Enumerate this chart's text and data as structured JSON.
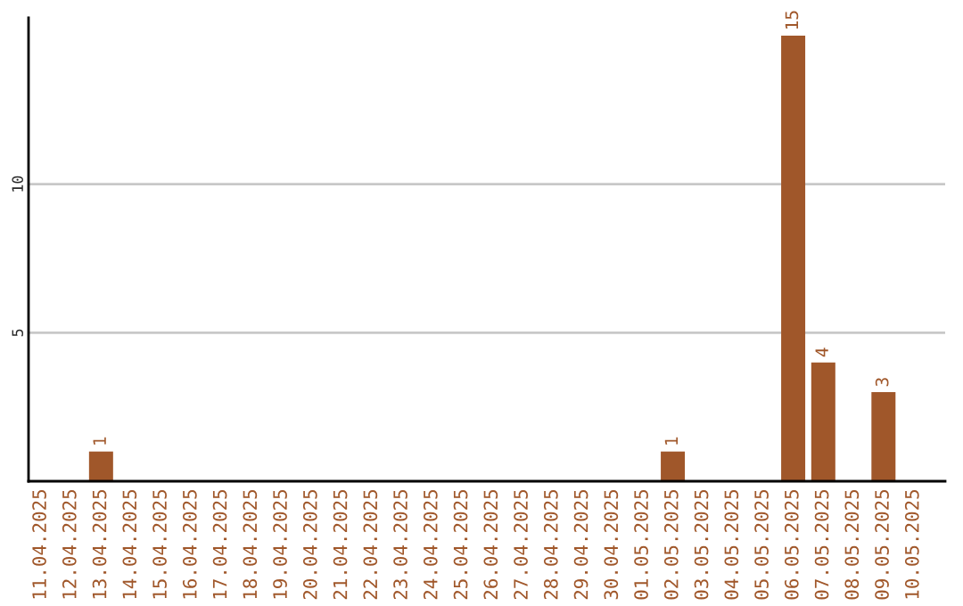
{
  "chart_data": {
    "type": "bar",
    "categories": [
      "11.04.2025",
      "12.04.2025",
      "13.04.2025",
      "14.04.2025",
      "15.04.2025",
      "16.04.2025",
      "17.04.2025",
      "18.04.2025",
      "19.04.2025",
      "20.04.2025",
      "21.04.2025",
      "22.04.2025",
      "23.04.2025",
      "24.04.2025",
      "25.04.2025",
      "26.04.2025",
      "27.04.2025",
      "28.04.2025",
      "29.04.2025",
      "30.04.2025",
      "01.05.2025",
      "02.05.2025",
      "03.05.2025",
      "04.05.2025",
      "05.05.2025",
      "06.05.2025",
      "07.05.2025",
      "08.05.2025",
      "09.05.2025",
      "10.05.2025"
    ],
    "values": [
      0,
      0,
      1,
      0,
      0,
      0,
      0,
      0,
      0,
      0,
      0,
      0,
      0,
      0,
      0,
      0,
      0,
      0,
      0,
      0,
      0,
      1,
      0,
      0,
      0,
      15,
      4,
      0,
      3,
      0
    ],
    "value_labels": [
      null,
      null,
      "1",
      null,
      null,
      null,
      null,
      null,
      null,
      null,
      null,
      null,
      null,
      null,
      null,
      null,
      null,
      null,
      null,
      null,
      null,
      "1",
      null,
      null,
      null,
      "15",
      "4",
      null,
      "3",
      null
    ],
    "color": "#a0572a",
    "ylim": [
      0,
      15.6
    ],
    "yticks": [
      5,
      10
    ],
    "grid": "y"
  }
}
